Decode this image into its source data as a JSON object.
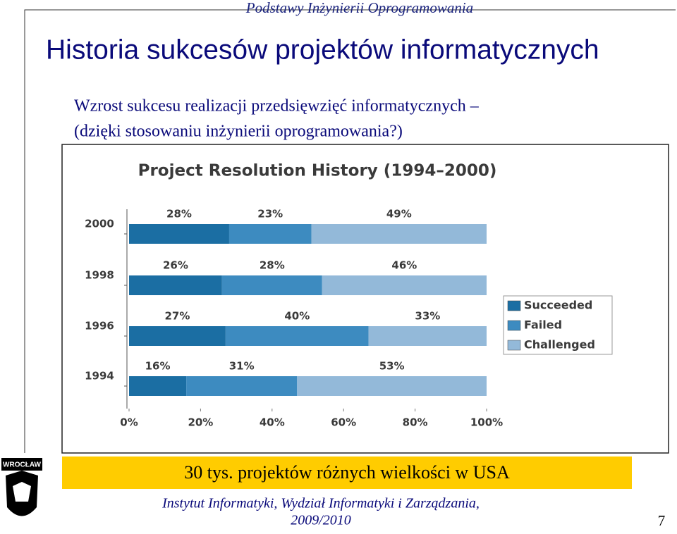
{
  "header": {
    "course": "Podstawy Inżynierii Oprogramowania",
    "title": "Historia sukcesów projektów informatycznych",
    "subtitle_lines": [
      "Wzrost sukcesu realizacji przedsięwzięć informatycznych –",
      "(dzięki stosowaniu inżynierii oprogramowania?)"
    ]
  },
  "chart_data": {
    "type": "stacked-barh",
    "title": "Project Resolution History (1994–2000)",
    "categories": [
      "2000",
      "1998",
      "1996",
      "1994"
    ],
    "series": [
      {
        "name": "Succeeded",
        "color": "#1b6ea3",
        "values": [
          28,
          26,
          27,
          16
        ],
        "value_labels": [
          "28%",
          "26%",
          "27%",
          "16%"
        ]
      },
      {
        "name": "Failed",
        "color": "#3d8bc0",
        "values": [
          23,
          28,
          40,
          31
        ],
        "value_labels": [
          "23%",
          "28%",
          "40%",
          "31%"
        ]
      },
      {
        "name": "Challenged",
        "color": "#93b9d9",
        "values": [
          49,
          46,
          33,
          53
        ],
        "value_labels": [
          "49%",
          "46%",
          "33%",
          "53%"
        ]
      }
    ],
    "xlim": [
      0,
      100
    ],
    "xticks": [
      {
        "value": 0,
        "label": "0%"
      },
      {
        "value": 20,
        "label": "20%"
      },
      {
        "value": 40,
        "label": "40%"
      },
      {
        "value": 60,
        "label": "60%"
      },
      {
        "value": 80,
        "label": "80%"
      },
      {
        "value": 100,
        "label": "100%"
      }
    ],
    "legend": "right"
  },
  "note": "30 tys. projektów różnych wielkości w USA",
  "footer": {
    "lines": [
      "Instytut Informatyki, Wydział Informatyki i Zarządzania,",
      "2009/2010"
    ],
    "page": "7"
  },
  "logo": {
    "city": "WROCŁAW"
  }
}
